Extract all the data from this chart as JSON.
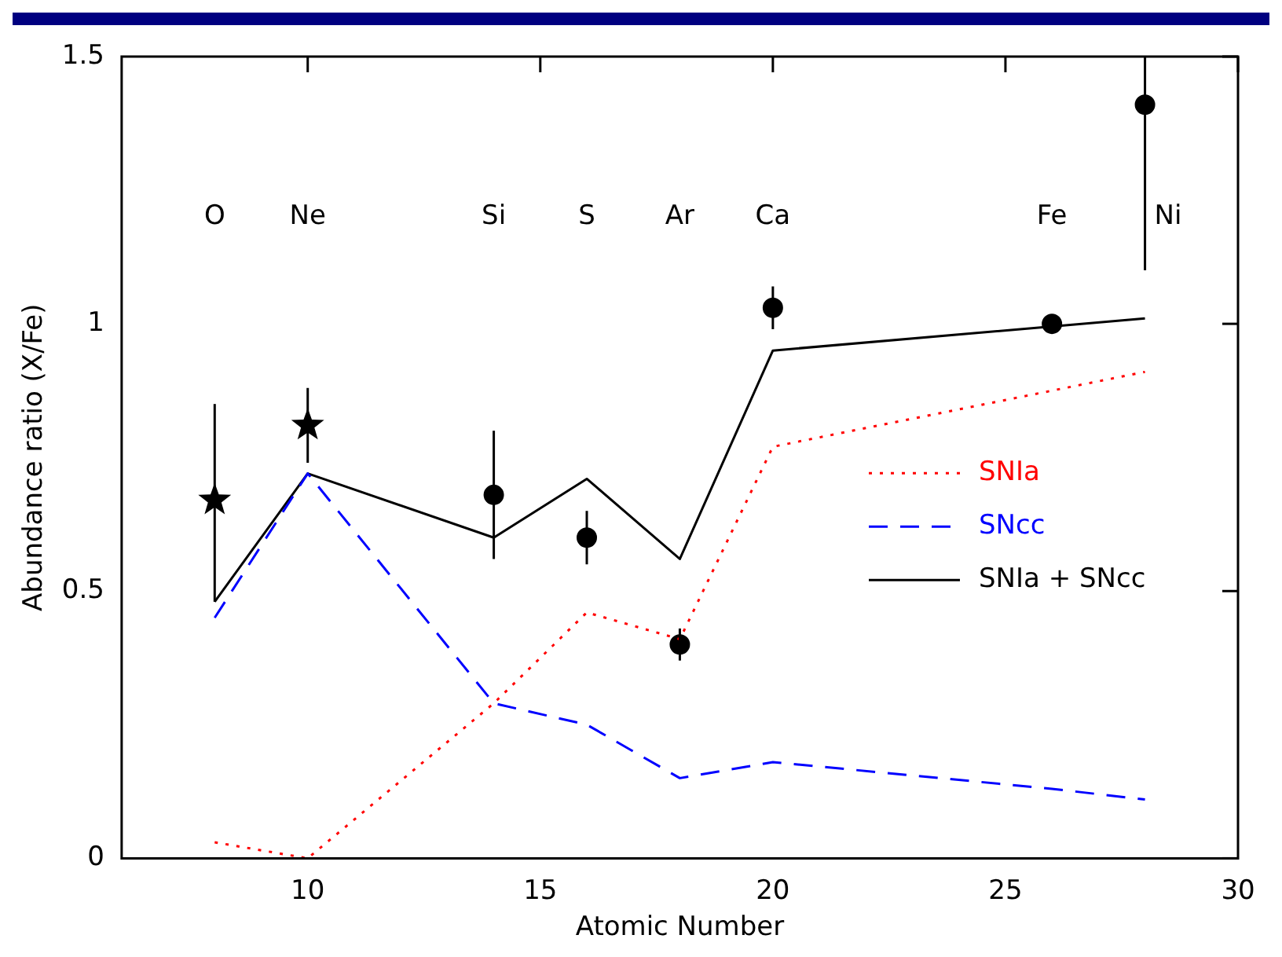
{
  "chart_data": {
    "type": "line",
    "xlabel": "Atomic Number",
    "ylabel": "Abundance ratio (X/Fe)",
    "xlim": [
      6,
      30
    ],
    "xticks": [
      10,
      15,
      20,
      25,
      30
    ],
    "ylim": [
      0,
      1.5
    ],
    "yticks": [
      0,
      0.5,
      1,
      1.5
    ],
    "grid": false,
    "legend": "right",
    "series": [
      {
        "name": "SNIa",
        "color": "#ff0000",
        "line_style": "dotted",
        "marker": "none",
        "x": [
          8,
          10,
          14,
          16,
          18,
          20,
          28
        ],
        "values": [
          0.03,
          0.0,
          0.29,
          0.46,
          0.41,
          0.77,
          0.91
        ]
      },
      {
        "name": "SNcc",
        "color": "#0000ff",
        "line_style": "dashed",
        "marker": "none",
        "x": [
          8,
          10,
          14,
          16,
          18,
          20,
          26,
          28
        ],
        "values": [
          0.45,
          0.72,
          0.29,
          0.25,
          0.15,
          0.18,
          0.13,
          0.11
        ]
      },
      {
        "name": "SNIa + SNcc",
        "color": "#000000",
        "line_style": "solid",
        "marker": "none",
        "x": [
          8,
          10,
          14,
          16,
          18,
          20,
          28
        ],
        "values": [
          0.48,
          0.72,
          0.6,
          0.71,
          0.56,
          0.95,
          1.01
        ]
      },
      {
        "type": "scatter",
        "color": "#000000",
        "marker": "star",
        "x": [
          8,
          10
        ],
        "values": [
          0.67,
          0.81
        ],
        "errors": [
          [
            0.48,
            0.85
          ],
          [
            0.74,
            0.88
          ]
        ]
      },
      {
        "type": "scatter",
        "color": "#000000",
        "marker": "circle",
        "x": [
          14,
          16,
          18,
          20,
          26,
          28
        ],
        "values": [
          0.68,
          0.6,
          0.4,
          1.03,
          1.0,
          1.41
        ],
        "errors": [
          [
            0.56,
            0.8
          ],
          [
            0.55,
            0.65
          ],
          [
            0.37,
            0.43
          ],
          [
            0.99,
            1.07
          ],
          null,
          [
            1.1,
            1.5
          ]
        ]
      }
    ],
    "annotations": [
      "O",
      "Ne",
      "Si",
      "S",
      "Ar",
      "Ca",
      "Fe",
      "Ni"
    ]
  }
}
